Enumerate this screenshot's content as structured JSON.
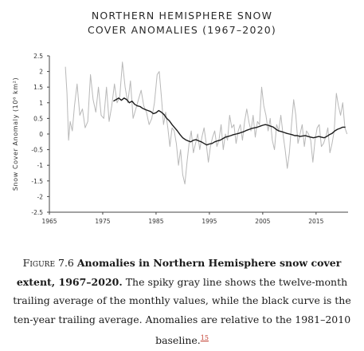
{
  "chart_data": {
    "type": "line",
    "title_line1": "NORTHERN HEMISPHERE SNOW",
    "title_line2": "COVER ANOMALIES (1967–2020)",
    "ylabel": "Snow Cover Anomaly (10⁶ km²)",
    "xlabel": "",
    "xlim": [
      1965,
      2021
    ],
    "ylim": [
      -2.5,
      2.5
    ],
    "x_ticks": [
      1965,
      1975,
      1985,
      1995,
      2005,
      2015
    ],
    "x_tick_labels": [
      "1965",
      "1975",
      "1985",
      "1995",
      "2005",
      "2015"
    ],
    "y_ticks": [
      2.5,
      2,
      1.5,
      1,
      0.5,
      0,
      -0.5,
      -1,
      -1.5,
      -2,
      -2.5
    ],
    "y_tick_labels": [
      "2.5",
      "2",
      "1.5",
      "1",
      "0.5",
      "0",
      "-0.5",
      "-1",
      "-1.5",
      "-2",
      "-2.5"
    ],
    "grid": false,
    "series": [
      {
        "color": "#b8b8b8",
        "x": [
          1968.0,
          1968.3,
          1968.6,
          1968.9,
          1969.3,
          1969.7,
          1970.2,
          1970.7,
          1971.2,
          1971.7,
          1972.2,
          1972.7,
          1973.2,
          1973.7,
          1974.2,
          1974.7,
          1975.2,
          1975.7,
          1976.2,
          1976.7,
          1977.2,
          1977.7,
          1978.2,
          1978.7,
          1979.2,
          1979.7,
          1980.2,
          1980.7,
          1981.2,
          1981.7,
          1982.2,
          1982.7,
          1983.2,
          1983.7,
          1984.2,
          1984.7,
          1985.2,
          1985.6,
          1986.0,
          1986.4,
          1986.8,
          1987.2,
          1987.6,
          1988.0,
          1988.4,
          1988.8,
          1989.2,
          1989.6,
          1990.0,
          1990.4,
          1990.8,
          1991.2,
          1991.6,
          1992.0,
          1992.4,
          1992.8,
          1993.2,
          1993.6,
          1994.0,
          1994.4,
          1994.8,
          1995.2,
          1995.6,
          1996.0,
          1996.4,
          1996.8,
          1997.2,
          1997.6,
          1998.0,
          1998.4,
          1998.8,
          1999.2,
          1999.6,
          2000.0,
          2000.4,
          2000.8,
          2001.2,
          2001.6,
          2002.0,
          2002.4,
          2002.8,
          2003.2,
          2003.6,
          2004.0,
          2004.4,
          2004.8,
          2005.2,
          2005.6,
          2006.0,
          2006.4,
          2006.8,
          2007.2,
          2007.6,
          2008.0,
          2008.4,
          2008.8,
          2009.2,
          2009.6,
          2010.0,
          2010.4,
          2010.8,
          2011.2,
          2011.6,
          2012.0,
          2012.4,
          2012.8,
          2013.2,
          2013.6,
          2014.0,
          2014.4,
          2014.8,
          2015.2,
          2015.6,
          2016.0,
          2016.4,
          2016.8,
          2017.2,
          2017.6,
          2018.0,
          2018.4,
          2018.8,
          2019.2,
          2019.6,
          2020.0,
          2020.4,
          2020.8
        ],
        "y": [
          2.15,
          1.3,
          -0.2,
          0.4,
          0.1,
          0.9,
          1.6,
          0.6,
          0.8,
          0.2,
          0.4,
          1.9,
          1.1,
          0.7,
          1.5,
          0.6,
          0.5,
          1.5,
          0.4,
          0.9,
          1.6,
          1.0,
          1.2,
          2.3,
          1.5,
          1.0,
          1.7,
          0.5,
          0.8,
          1.1,
          1.4,
          0.9,
          0.7,
          0.3,
          0.5,
          1.0,
          1.9,
          2.0,
          1.2,
          0.3,
          0.7,
          0.2,
          -0.4,
          0.2,
          0.1,
          -0.3,
          -1.0,
          -0.5,
          -1.3,
          -1.6,
          -0.9,
          -0.3,
          0.1,
          -0.6,
          -0.3,
          0.0,
          -0.5,
          -0.1,
          0.2,
          -0.3,
          -0.9,
          -0.4,
          -0.1,
          0.1,
          -0.4,
          -0.2,
          0.3,
          -0.5,
          0.0,
          -0.2,
          0.6,
          0.2,
          0.3,
          -0.3,
          0.1,
          0.3,
          -0.2,
          0.4,
          0.8,
          0.4,
          0.1,
          0.6,
          -0.1,
          0.4,
          0.3,
          1.5,
          0.9,
          0.6,
          0.1,
          0.5,
          -0.2,
          -0.5,
          0.3,
          0.1,
          0.6,
          0.0,
          -0.5,
          -1.1,
          -0.6,
          0.3,
          1.1,
          0.6,
          -0.3,
          0.0,
          0.3,
          -0.4,
          0.1,
          0.0,
          -0.2,
          -0.9,
          -0.2,
          0.2,
          0.3,
          -0.4,
          -0.3,
          -0.1,
          0.2,
          -0.6,
          -0.3,
          0.1,
          1.3,
          0.9,
          0.6,
          1.0,
          0.2,
          0.0
        ]
      },
      {
        "color": "#1a1a1a",
        "x": [
          1977.0,
          1977.5,
          1978.0,
          1978.5,
          1979.0,
          1979.5,
          1980.0,
          1980.5,
          1981.0,
          1981.5,
          1982.0,
          1982.5,
          1983.0,
          1983.5,
          1984.0,
          1984.5,
          1985.0,
          1985.5,
          1986.0,
          1986.5,
          1987.0,
          1987.5,
          1988.0,
          1988.5,
          1989.0,
          1989.5,
          1990.0,
          1990.5,
          1991.0,
          1991.5,
          1992.0,
          1992.5,
          1993.0,
          1993.5,
          1994.0,
          1994.5,
          1995.0,
          1995.5,
          1996.0,
          1996.5,
          1997.0,
          1997.5,
          1998.0,
          1998.5,
          1999.0,
          1999.5,
          2000.0,
          2000.5,
          2001.0,
          2001.5,
          2002.0,
          2002.5,
          2003.0,
          2003.5,
          2004.0,
          2004.5,
          2005.0,
          2005.5,
          2006.0,
          2006.5,
          2007.0,
          2007.5,
          2008.0,
          2008.5,
          2009.0,
          2009.5,
          2010.0,
          2010.5,
          2011.0,
          2011.5,
          2012.0,
          2012.5,
          2013.0,
          2013.5,
          2014.0,
          2014.5,
          2015.0,
          2015.5,
          2016.0,
          2016.5,
          2017.0,
          2017.5,
          2018.0,
          2018.5,
          2019.0,
          2019.5,
          2020.0,
          2020.5
        ],
        "y": [
          1.05,
          1.1,
          1.15,
          1.08,
          1.15,
          1.1,
          1.0,
          1.05,
          0.95,
          0.9,
          0.88,
          0.82,
          0.78,
          0.75,
          0.72,
          0.65,
          0.68,
          0.75,
          0.7,
          0.62,
          0.5,
          0.42,
          0.3,
          0.2,
          0.1,
          -0.02,
          -0.12,
          -0.18,
          -0.22,
          -0.25,
          -0.2,
          -0.18,
          -0.22,
          -0.25,
          -0.3,
          -0.35,
          -0.32,
          -0.3,
          -0.25,
          -0.22,
          -0.2,
          -0.15,
          -0.1,
          -0.08,
          -0.05,
          -0.02,
          0.0,
          0.02,
          0.05,
          0.08,
          0.12,
          0.15,
          0.18,
          0.2,
          0.22,
          0.25,
          0.28,
          0.3,
          0.28,
          0.25,
          0.22,
          0.15,
          0.1,
          0.08,
          0.05,
          0.02,
          0.0,
          -0.02,
          -0.05,
          -0.05,
          -0.08,
          -0.06,
          -0.05,
          -0.08,
          -0.1,
          -0.12,
          -0.1,
          -0.08,
          -0.1,
          -0.12,
          -0.08,
          -0.02,
          0.02,
          0.1,
          0.15,
          0.18,
          0.22,
          0.22
        ]
      }
    ]
  },
  "caption": {
    "figure_label": "Figure 7.6",
    "bold_text": "Anomalies in Northern Hemisphere snow cover extent, 1967–2020.",
    "body_text": "The spiky gray line shows the twelve-month trailing average of the monthly values, while the black curve is the ten-year trailing average. Anomalies are relative to the 1981–2010 baseline.",
    "note_ref": "15"
  }
}
